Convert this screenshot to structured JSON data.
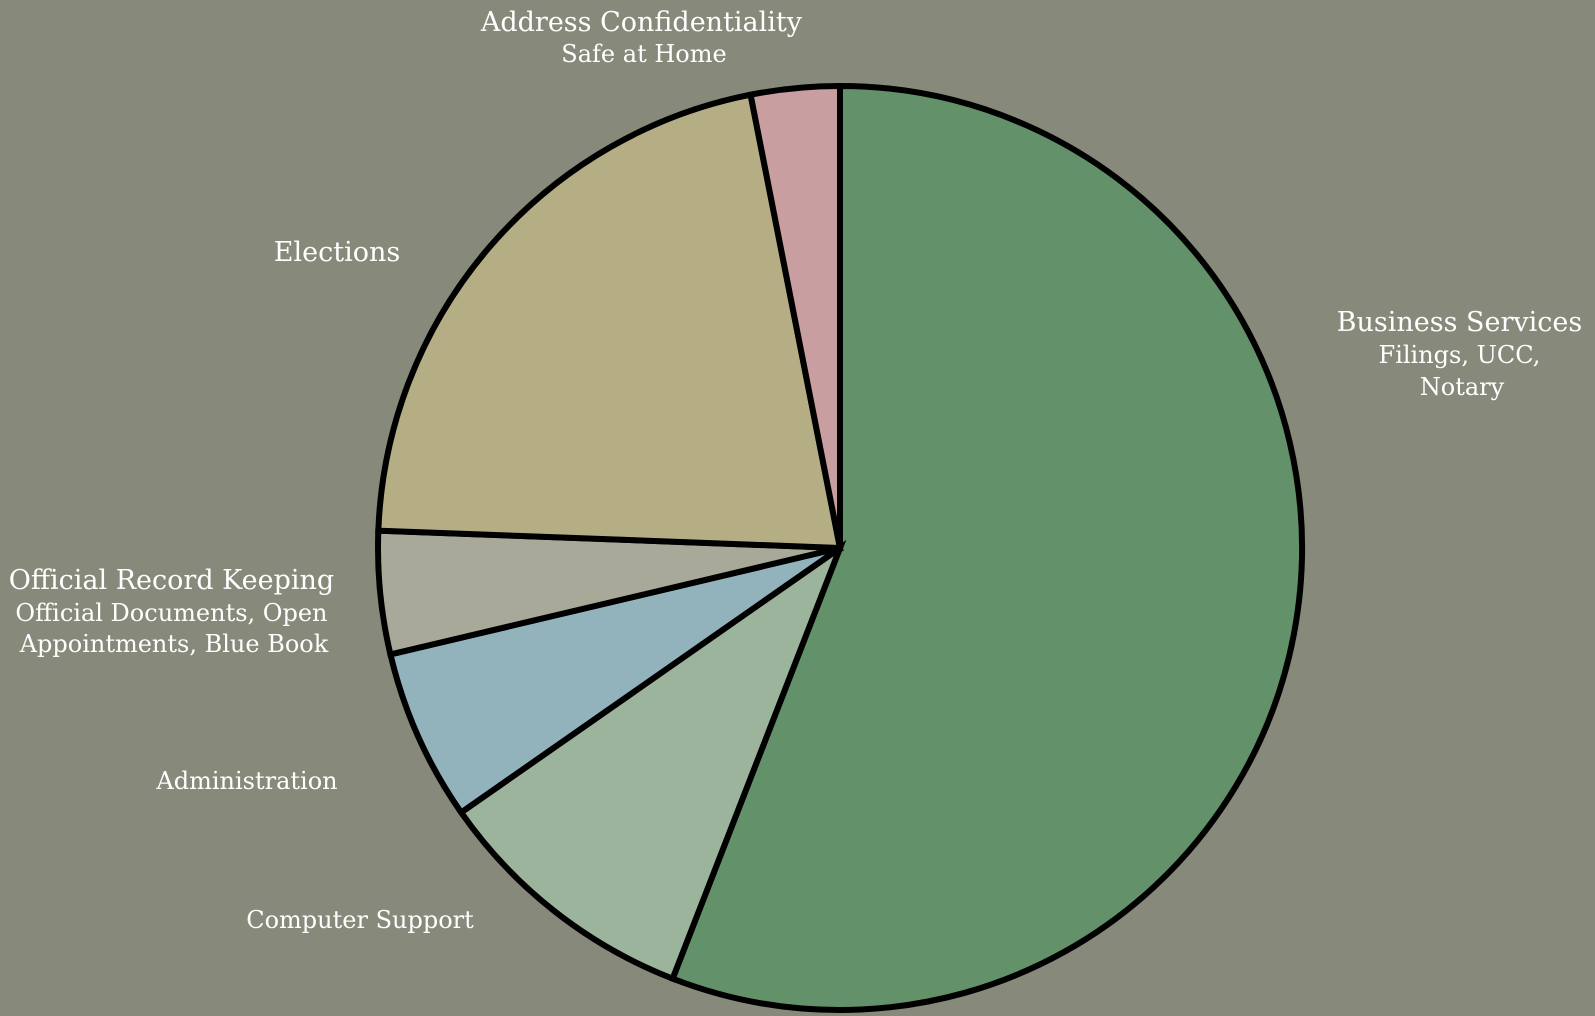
{
  "chart_data": {
    "type": "pie",
    "title": "",
    "start": "12 o'clock",
    "direction": "clockwise",
    "background_color": "#87897a",
    "slices": [
      {
        "key": "business",
        "label": "Business Services",
        "sublabel": [
          "Filings, UCC,",
          "Notary"
        ],
        "value": 55.9,
        "color": "#63916a"
      },
      {
        "key": "computer",
        "label": "Computer Support",
        "sublabel": [],
        "value": 9.4,
        "color": "#9cb49c"
      },
      {
        "key": "admin",
        "label": "Administration",
        "sublabel": [],
        "value": 6.0,
        "color": "#93b3bc"
      },
      {
        "key": "records",
        "label": "Official Record Keeping",
        "sublabel": [
          "Official Documents, Open",
          "Appointments, Blue Book"
        ],
        "value": 4.3,
        "color": "#a9a99a"
      },
      {
        "key": "elections",
        "label": "Elections",
        "sublabel": [],
        "value": 21.3,
        "color": "#b5ae85"
      },
      {
        "key": "acp",
        "label": "Address Confidentiality",
        "sublabel": [
          "Safe at Home"
        ],
        "value": 3.1,
        "color": "#c99ea0"
      }
    ]
  }
}
